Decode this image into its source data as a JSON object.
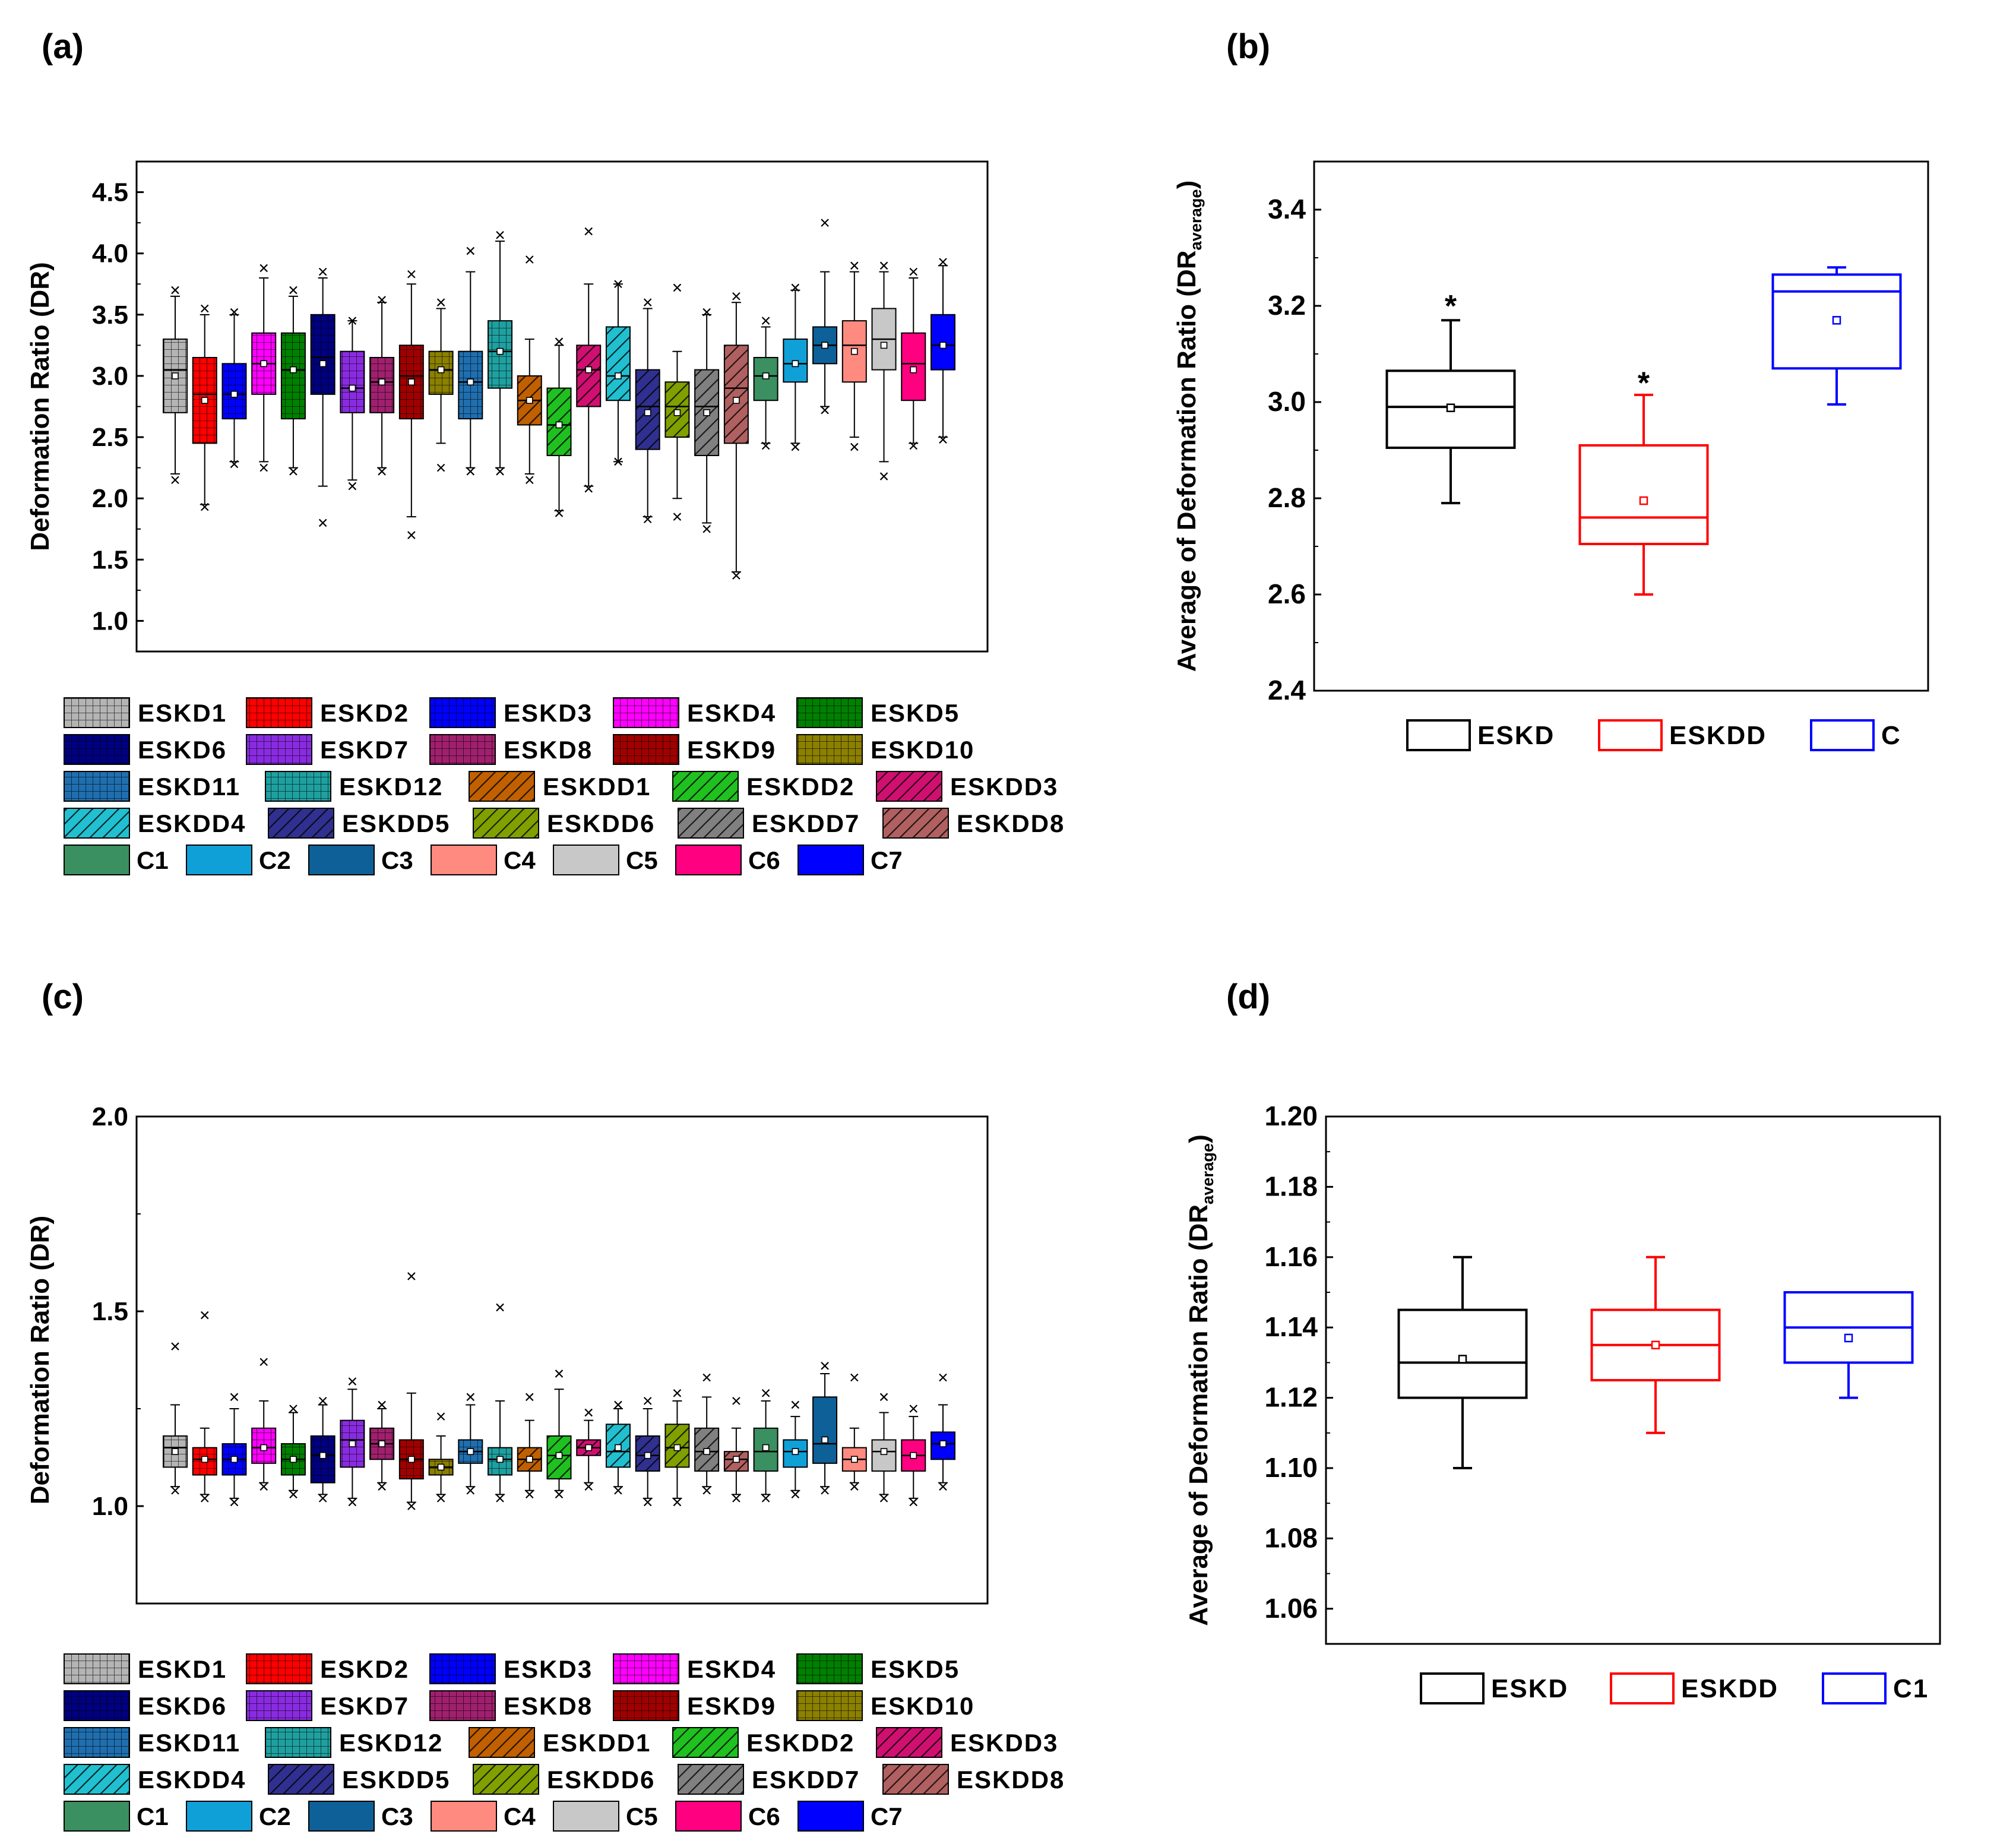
{
  "figure": {
    "panel_labels": [
      "(a)",
      "(b)",
      "(c)",
      "(d)"
    ]
  },
  "legend_groups": [
    {
      "label": "ESKD1",
      "color": "#b4b4b4",
      "pattern": "grid"
    },
    {
      "label": "ESKD2",
      "color": "#ff0000",
      "pattern": "grid"
    },
    {
      "label": "ESKD3",
      "color": "#0000ff",
      "pattern": "grid"
    },
    {
      "label": "ESKD4",
      "color": "#ff00ff",
      "pattern": "grid"
    },
    {
      "label": "ESKD5",
      "color": "#008000",
      "pattern": "grid"
    },
    {
      "label": "ESKD6",
      "color": "#000080",
      "pattern": "grid"
    },
    {
      "label": "ESKD7",
      "color": "#8a2be2",
      "pattern": "grid"
    },
    {
      "label": "ESKD8",
      "color": "#a0206e",
      "pattern": "grid"
    },
    {
      "label": "ESKD9",
      "color": "#a00000",
      "pattern": "grid"
    },
    {
      "label": "ESKD10",
      "color": "#8b8000",
      "pattern": "grid"
    },
    {
      "label": "ESKD11",
      "color": "#1f6fb0",
      "pattern": "grid"
    },
    {
      "label": "ESKD12",
      "color": "#1fa0a0",
      "pattern": "grid"
    },
    {
      "label": "ESKDD1",
      "color": "#c06000",
      "pattern": "hatch"
    },
    {
      "label": "ESKDD2",
      "color": "#20c020",
      "pattern": "hatch"
    },
    {
      "label": "ESKDD3",
      "color": "#d01070",
      "pattern": "hatch"
    },
    {
      "label": "ESKDD4",
      "color": "#20c0d0",
      "pattern": "hatch"
    },
    {
      "label": "ESKDD5",
      "color": "#303090",
      "pattern": "hatch"
    },
    {
      "label": "ESKDD6",
      "color": "#80a000",
      "pattern": "hatch"
    },
    {
      "label": "ESKDD7",
      "color": "#808080",
      "pattern": "hatch"
    },
    {
      "label": "ESKDD8",
      "color": "#b06060",
      "pattern": "hatch"
    },
    {
      "label": "C1",
      "color": "#3a9060",
      "pattern": "solid"
    },
    {
      "label": "C2",
      "color": "#10a0d8",
      "pattern": "solid"
    },
    {
      "label": "C3",
      "color": "#0e6098",
      "pattern": "solid"
    },
    {
      "label": "C4",
      "color": "#ff8a80",
      "pattern": "solid"
    },
    {
      "label": "C5",
      "color": "#c8c8c8",
      "pattern": "solid"
    },
    {
      "label": "C6",
      "color": "#ff0080",
      "pattern": "solid"
    },
    {
      "label": "C7",
      "color": "#0000ff",
      "pattern": "solid"
    }
  ],
  "chart_data": [
    {
      "panel": "(a)",
      "type": "box",
      "ylabel": "Deformation Ratio (DR)",
      "ylim": [
        0.75,
        4.75
      ],
      "yticks": [
        1.0,
        1.5,
        2.0,
        2.5,
        3.0,
        3.5,
        4.0,
        4.5
      ],
      "ytick_labels": [
        "1.0",
        "1.5",
        "2.0",
        "2.5",
        "3.0",
        "3.5",
        "4.0",
        "4.5"
      ],
      "series": [
        {
          "name": "ESKD1",
          "q1": 2.7,
          "median": 3.05,
          "q3": 3.3,
          "mean": 3.0,
          "wlo": 2.2,
          "whi": 3.65,
          "outliers": [
            2.15,
            3.7
          ]
        },
        {
          "name": "ESKD2",
          "q1": 2.45,
          "median": 2.85,
          "q3": 3.15,
          "mean": 2.8,
          "wlo": 1.95,
          "whi": 3.5,
          "outliers": [
            1.93,
            3.55
          ]
        },
        {
          "name": "ESKD3",
          "q1": 2.65,
          "median": 2.85,
          "q3": 3.1,
          "mean": 2.85,
          "wlo": 2.3,
          "whi": 3.5,
          "outliers": [
            2.28,
            3.52
          ]
        },
        {
          "name": "ESKD4",
          "q1": 2.85,
          "median": 3.1,
          "q3": 3.35,
          "mean": 3.1,
          "wlo": 2.3,
          "whi": 3.8,
          "outliers": [
            2.25,
            3.88
          ]
        },
        {
          "name": "ESKD5",
          "q1": 2.65,
          "median": 3.05,
          "q3": 3.35,
          "mean": 3.05,
          "wlo": 2.25,
          "whi": 3.65,
          "outliers": [
            2.22,
            3.7
          ]
        },
        {
          "name": "ESKD6",
          "q1": 2.85,
          "median": 3.15,
          "q3": 3.5,
          "mean": 3.1,
          "wlo": 2.1,
          "whi": 3.8,
          "outliers": [
            1.8,
            3.85
          ]
        },
        {
          "name": "ESKD7",
          "q1": 2.7,
          "median": 2.9,
          "q3": 3.2,
          "mean": 2.9,
          "wlo": 2.15,
          "whi": 3.45,
          "outliers": [
            2.1,
            3.45
          ]
        },
        {
          "name": "ESKD8",
          "q1": 2.7,
          "median": 2.95,
          "q3": 3.15,
          "mean": 2.95,
          "wlo": 2.25,
          "whi": 3.6,
          "outliers": [
            2.22,
            3.62
          ]
        },
        {
          "name": "ESKD9",
          "q1": 2.65,
          "median": 3.0,
          "q3": 3.25,
          "mean": 2.95,
          "wlo": 1.85,
          "whi": 3.75,
          "outliers": [
            1.7,
            3.83
          ]
        },
        {
          "name": "ESKD10",
          "q1": 2.85,
          "median": 3.05,
          "q3": 3.2,
          "mean": 3.05,
          "wlo": 2.45,
          "whi": 3.55,
          "outliers": [
            2.25,
            3.6
          ]
        },
        {
          "name": "ESKD11",
          "q1": 2.65,
          "median": 2.95,
          "q3": 3.2,
          "mean": 2.95,
          "wlo": 2.25,
          "whi": 3.85,
          "outliers": [
            2.22,
            4.02
          ]
        },
        {
          "name": "ESKD12",
          "q1": 2.9,
          "median": 3.2,
          "q3": 3.45,
          "mean": 3.2,
          "wlo": 2.25,
          "whi": 4.1,
          "outliers": [
            2.22,
            4.15
          ]
        },
        {
          "name": "ESKDD1",
          "q1": 2.6,
          "median": 2.8,
          "q3": 3.0,
          "mean": 2.8,
          "wlo": 2.2,
          "whi": 3.3,
          "outliers": [
            2.15,
            3.95
          ]
        },
        {
          "name": "ESKDD2",
          "q1": 2.35,
          "median": 2.6,
          "q3": 2.9,
          "mean": 2.6,
          "wlo": 1.9,
          "whi": 3.25,
          "outliers": [
            1.88,
            3.28
          ]
        },
        {
          "name": "ESKDD3",
          "q1": 2.75,
          "median": 3.05,
          "q3": 3.25,
          "mean": 3.05,
          "wlo": 2.1,
          "whi": 3.75,
          "outliers": [
            2.08,
            4.18
          ]
        },
        {
          "name": "ESKDD4",
          "q1": 2.8,
          "median": 3.0,
          "q3": 3.4,
          "mean": 3.0,
          "wlo": 2.3,
          "whi": 3.75,
          "outliers": [
            2.3,
            3.75
          ]
        },
        {
          "name": "ESKDD5",
          "q1": 2.4,
          "median": 2.75,
          "q3": 3.05,
          "mean": 2.7,
          "wlo": 1.85,
          "whi": 3.55,
          "outliers": [
            1.83,
            3.6
          ]
        },
        {
          "name": "ESKDD6",
          "q1": 2.5,
          "median": 2.75,
          "q3": 2.95,
          "mean": 2.7,
          "wlo": 2.0,
          "whi": 3.2,
          "outliers": [
            1.85,
            3.72
          ]
        },
        {
          "name": "ESKDD7",
          "q1": 2.35,
          "median": 2.75,
          "q3": 3.05,
          "mean": 2.7,
          "wlo": 1.8,
          "whi": 3.5,
          "outliers": [
            1.75,
            3.52
          ]
        },
        {
          "name": "ESKDD8",
          "q1": 2.45,
          "median": 2.9,
          "q3": 3.25,
          "mean": 2.8,
          "wlo": 1.4,
          "whi": 3.6,
          "outliers": [
            1.37,
            3.65
          ]
        },
        {
          "name": "C1",
          "q1": 2.8,
          "median": 3.0,
          "q3": 3.15,
          "mean": 3.0,
          "wlo": 2.45,
          "whi": 3.4,
          "outliers": [
            2.43,
            3.45
          ]
        },
        {
          "name": "C2",
          "q1": 2.95,
          "median": 3.1,
          "q3": 3.3,
          "mean": 3.1,
          "wlo": 2.45,
          "whi": 3.7,
          "outliers": [
            2.42,
            3.72
          ]
        },
        {
          "name": "C3",
          "q1": 3.1,
          "median": 3.25,
          "q3": 3.4,
          "mean": 3.25,
          "wlo": 2.75,
          "whi": 3.85,
          "outliers": [
            2.72,
            4.25
          ]
        },
        {
          "name": "C4",
          "q1": 2.95,
          "median": 3.25,
          "q3": 3.45,
          "mean": 3.2,
          "wlo": 2.5,
          "whi": 3.85,
          "outliers": [
            2.42,
            3.9
          ]
        },
        {
          "name": "C5",
          "q1": 3.05,
          "median": 3.3,
          "q3": 3.55,
          "mean": 3.25,
          "wlo": 2.3,
          "whi": 3.85,
          "outliers": [
            2.18,
            3.9
          ]
        },
        {
          "name": "C6",
          "q1": 2.8,
          "median": 3.1,
          "q3": 3.35,
          "mean": 3.05,
          "wlo": 2.45,
          "whi": 3.8,
          "outliers": [
            2.43,
            3.85
          ]
        },
        {
          "name": "C7",
          "q1": 3.05,
          "median": 3.25,
          "q3": 3.5,
          "mean": 3.25,
          "wlo": 2.5,
          "whi": 3.9,
          "outliers": [
            2.48,
            3.93
          ]
        }
      ]
    },
    {
      "panel": "(b)",
      "type": "box",
      "ylabel": "Average of Deformation Ratio (DR",
      "ylabel_sub": "average",
      "ylabel_close": ")",
      "ylim": [
        2.4,
        3.5
      ],
      "yticks": [
        2.4,
        2.6,
        2.8,
        3.0,
        3.2,
        3.4
      ],
      "ytick_labels": [
        "2.4",
        "2.6",
        "2.8",
        "3.0",
        "3.2",
        "3.4"
      ],
      "series": [
        {
          "name": "ESKD",
          "color": "#000000",
          "q1": 2.905,
          "median": 2.99,
          "q3": 3.065,
          "mean": 2.988,
          "wlo": 2.79,
          "whi": 3.17,
          "outliers": [
            3.21
          ],
          "marker": "*"
        },
        {
          "name": "ESKDD",
          "color": "#ff0000",
          "q1": 2.705,
          "median": 2.76,
          "q3": 2.91,
          "mean": 2.795,
          "wlo": 2.6,
          "whi": 3.015,
          "outliers": [
            3.05
          ],
          "marker": "*"
        },
        {
          "name": "C",
          "color": "#0000ff",
          "q1": 3.07,
          "median": 3.23,
          "q3": 3.265,
          "mean": 3.17,
          "wlo": 2.995,
          "whi": 3.28,
          "outliers": [],
          "marker": "*"
        }
      ]
    },
    {
      "panel": "(c)",
      "type": "box",
      "ylabel": "Deformation Ratio (DR)",
      "ylim": [
        0.75,
        2.0
      ],
      "yticks": [
        1.0,
        1.5,
        2.0
      ],
      "ytick_labels": [
        "1.0",
        "1.5",
        "2.0"
      ],
      "series": [
        {
          "name": "ESKD1",
          "q1": 1.1,
          "median": 1.15,
          "q3": 1.18,
          "mean": 1.14,
          "wlo": 1.05,
          "whi": 1.26,
          "outliers": [
            1.04,
            1.41
          ]
        },
        {
          "name": "ESKD2",
          "q1": 1.08,
          "median": 1.12,
          "q3": 1.15,
          "mean": 1.12,
          "wlo": 1.03,
          "whi": 1.2,
          "outliers": [
            1.02,
            1.49
          ]
        },
        {
          "name": "ESKD3",
          "q1": 1.08,
          "median": 1.12,
          "q3": 1.16,
          "mean": 1.12,
          "wlo": 1.02,
          "whi": 1.25,
          "outliers": [
            1.01,
            1.28
          ]
        },
        {
          "name": "ESKD4",
          "q1": 1.11,
          "median": 1.15,
          "q3": 1.2,
          "mean": 1.15,
          "wlo": 1.06,
          "whi": 1.27,
          "outliers": [
            1.05,
            1.37
          ]
        },
        {
          "name": "ESKD5",
          "q1": 1.08,
          "median": 1.12,
          "q3": 1.16,
          "mean": 1.12,
          "wlo": 1.04,
          "whi": 1.24,
          "outliers": [
            1.03,
            1.25
          ]
        },
        {
          "name": "ESKD6",
          "q1": 1.06,
          "median": 1.13,
          "q3": 1.18,
          "mean": 1.13,
          "wlo": 1.03,
          "whi": 1.26,
          "outliers": [
            1.02,
            1.27
          ]
        },
        {
          "name": "ESKD7",
          "q1": 1.1,
          "median": 1.17,
          "q3": 1.22,
          "mean": 1.16,
          "wlo": 1.02,
          "whi": 1.3,
          "outliers": [
            1.01,
            1.32
          ]
        },
        {
          "name": "ESKD8",
          "q1": 1.12,
          "median": 1.16,
          "q3": 1.2,
          "mean": 1.16,
          "wlo": 1.06,
          "whi": 1.25,
          "outliers": [
            1.05,
            1.26
          ]
        },
        {
          "name": "ESKD9",
          "q1": 1.07,
          "median": 1.12,
          "q3": 1.17,
          "mean": 1.12,
          "wlo": 1.01,
          "whi": 1.29,
          "outliers": [
            1.0,
            1.59
          ]
        },
        {
          "name": "ESKD10",
          "q1": 1.08,
          "median": 1.1,
          "q3": 1.12,
          "mean": 1.1,
          "wlo": 1.03,
          "whi": 1.18,
          "outliers": [
            1.02,
            1.23
          ]
        },
        {
          "name": "ESKD11",
          "q1": 1.11,
          "median": 1.14,
          "q3": 1.17,
          "mean": 1.14,
          "wlo": 1.05,
          "whi": 1.26,
          "outliers": [
            1.04,
            1.28
          ]
        },
        {
          "name": "ESKD12",
          "q1": 1.08,
          "median": 1.12,
          "q3": 1.15,
          "mean": 1.12,
          "wlo": 1.03,
          "whi": 1.27,
          "outliers": [
            1.02,
            1.51
          ]
        },
        {
          "name": "ESKDD1",
          "q1": 1.09,
          "median": 1.12,
          "q3": 1.15,
          "mean": 1.12,
          "wlo": 1.04,
          "whi": 1.22,
          "outliers": [
            1.03,
            1.28
          ]
        },
        {
          "name": "ESKDD2",
          "q1": 1.07,
          "median": 1.13,
          "q3": 1.18,
          "mean": 1.13,
          "wlo": 1.04,
          "whi": 1.3,
          "outliers": [
            1.03,
            1.34
          ]
        },
        {
          "name": "ESKDD3",
          "q1": 1.13,
          "median": 1.15,
          "q3": 1.17,
          "mean": 1.15,
          "wlo": 1.06,
          "whi": 1.22,
          "outliers": [
            1.05,
            1.24
          ]
        },
        {
          "name": "ESKDD4",
          "q1": 1.1,
          "median": 1.14,
          "q3": 1.21,
          "mean": 1.15,
          "wlo": 1.05,
          "whi": 1.25,
          "outliers": [
            1.04,
            1.26
          ]
        },
        {
          "name": "ESKDD5",
          "q1": 1.09,
          "median": 1.13,
          "q3": 1.18,
          "mean": 1.13,
          "wlo": 1.02,
          "whi": 1.25,
          "outliers": [
            1.01,
            1.27
          ]
        },
        {
          "name": "ESKDD6",
          "q1": 1.1,
          "median": 1.15,
          "q3": 1.21,
          "mean": 1.15,
          "wlo": 1.02,
          "whi": 1.27,
          "outliers": [
            1.01,
            1.29
          ]
        },
        {
          "name": "ESKDD7",
          "q1": 1.09,
          "median": 1.14,
          "q3": 1.2,
          "mean": 1.14,
          "wlo": 1.05,
          "whi": 1.28,
          "outliers": [
            1.04,
            1.33
          ]
        },
        {
          "name": "ESKDD8",
          "q1": 1.09,
          "median": 1.12,
          "q3": 1.14,
          "mean": 1.12,
          "wlo": 1.03,
          "whi": 1.2,
          "outliers": [
            1.02,
            1.27
          ]
        },
        {
          "name": "C1",
          "q1": 1.09,
          "median": 1.14,
          "q3": 1.2,
          "mean": 1.15,
          "wlo": 1.03,
          "whi": 1.27,
          "outliers": [
            1.02,
            1.29
          ]
        },
        {
          "name": "C2",
          "q1": 1.1,
          "median": 1.14,
          "q3": 1.17,
          "mean": 1.14,
          "wlo": 1.04,
          "whi": 1.23,
          "outliers": [
            1.03,
            1.26
          ]
        },
        {
          "name": "C3",
          "q1": 1.11,
          "median": 1.16,
          "q3": 1.28,
          "mean": 1.17,
          "wlo": 1.05,
          "whi": 1.34,
          "outliers": [
            1.04,
            1.36
          ]
        },
        {
          "name": "C4",
          "q1": 1.09,
          "median": 1.12,
          "q3": 1.15,
          "mean": 1.12,
          "wlo": 1.06,
          "whi": 1.2,
          "outliers": [
            1.05,
            1.33
          ]
        },
        {
          "name": "C5",
          "q1": 1.09,
          "median": 1.14,
          "q3": 1.17,
          "mean": 1.14,
          "wlo": 1.03,
          "whi": 1.24,
          "outliers": [
            1.02,
            1.28
          ]
        },
        {
          "name": "C6",
          "q1": 1.09,
          "median": 1.13,
          "q3": 1.17,
          "mean": 1.13,
          "wlo": 1.02,
          "whi": 1.23,
          "outliers": [
            1.01,
            1.25
          ]
        },
        {
          "name": "C7",
          "q1": 1.12,
          "median": 1.16,
          "q3": 1.19,
          "mean": 1.16,
          "wlo": 1.06,
          "whi": 1.26,
          "outliers": [
            1.05,
            1.33
          ]
        }
      ]
    },
    {
      "panel": "(d)",
      "type": "box",
      "ylabel": "Average of Deformation Ratio (DR",
      "ylabel_sub": "average",
      "ylabel_close": ")",
      "ylim": [
        1.05,
        1.2
      ],
      "yticks": [
        1.06,
        1.08,
        1.1,
        1.12,
        1.14,
        1.16,
        1.18,
        1.2
      ],
      "ytick_labels": [
        "1.06",
        "1.08",
        "1.10",
        "1.12",
        "1.14",
        "1.16",
        "1.18",
        "1.20"
      ],
      "series": [
        {
          "name": "ESKD",
          "color": "#000000",
          "q1": 1.12,
          "median": 1.13,
          "q3": 1.145,
          "mean": 1.131,
          "wlo": 1.1,
          "whi": 1.16,
          "outliers": []
        },
        {
          "name": "ESKDD",
          "color": "#ff0000",
          "q1": 1.125,
          "median": 1.135,
          "q3": 1.145,
          "mean": 1.135,
          "wlo": 1.11,
          "whi": 1.16,
          "outliers": []
        },
        {
          "name": "C1",
          "color": "#0000ff",
          "q1": 1.13,
          "median": 1.14,
          "q3": 1.15,
          "mean": 1.137,
          "wlo": 1.12,
          "whi": 1.15,
          "outliers": []
        }
      ]
    }
  ]
}
